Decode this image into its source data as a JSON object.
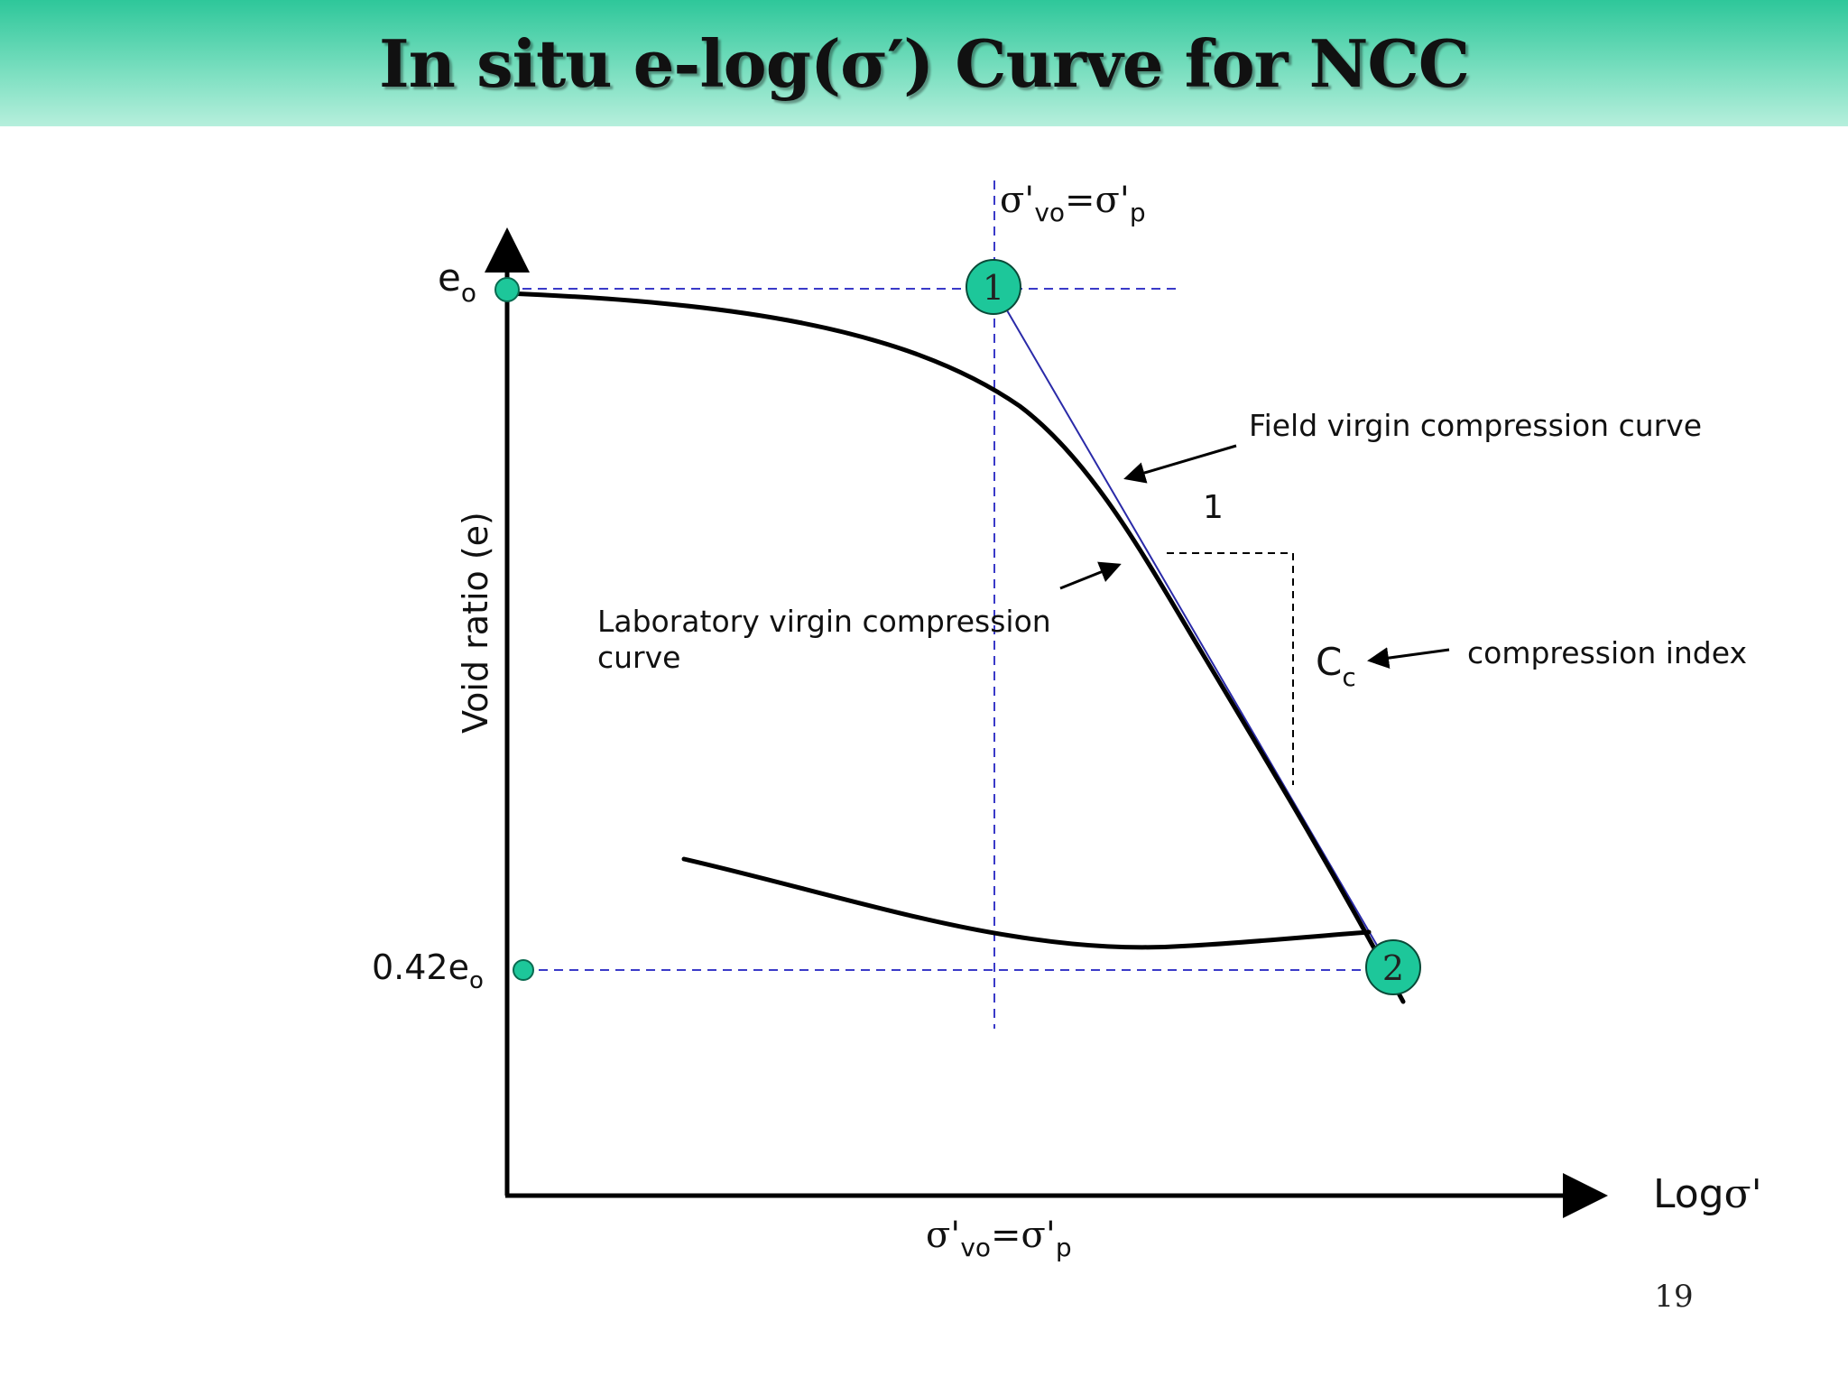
{
  "title": "In situ e-log(σ′) Curve for NCC",
  "page_number": "19",
  "axes": {
    "x_label_main": "Log",
    "x_label_sigma": "σ'",
    "y_label": "Void ratio (e)"
  },
  "y_ticks": {
    "top_main": "e",
    "top_sub": "o",
    "bottom_main": "0.42e",
    "bottom_sub": "o"
  },
  "sigma_label": {
    "sigma": "σ'",
    "sub1": "vo",
    "eq": "=σ'",
    "sub2": "p"
  },
  "points": {
    "p1": "1",
    "p2": "2"
  },
  "annotations": {
    "field_curve": "Field virgin compression curve",
    "lab_curve_line1": "Laboratory virgin compression",
    "lab_curve_line2": "curve",
    "slope_run": "1",
    "cc_main": "C",
    "cc_sub": "c",
    "cc_desc": "compression index"
  },
  "colors": {
    "marker_fill": "#1dc79a",
    "guide_line": "#3a3ac8",
    "field_line": "#2a2aa8",
    "curve": "#000000",
    "title_bar_top": "#2ec79a",
    "title_bar_bottom": "#b6efdc"
  }
}
